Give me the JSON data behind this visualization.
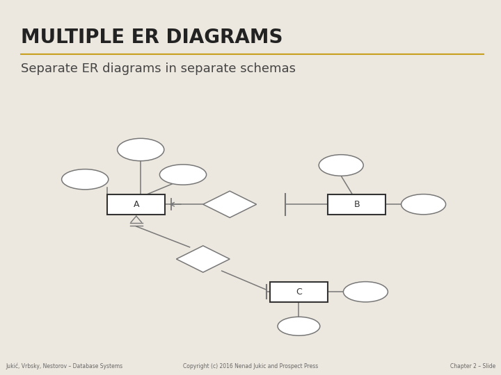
{
  "title": "MULTIPLE ER DIAGRAMS",
  "subtitle": "Separate ER diagrams in separate schemas",
  "footer_left": "Jukić, Vrbsky, Nestorov – Database Systems",
  "footer_center": "Copyright (c) 2016 Nenad Jukic and Prospect Press",
  "footer_right": "Chapter 2 – Slide",
  "bg_color": "#cce8f4",
  "slide_bg": "#ede8df",
  "title_color": "#222222",
  "subtitle_color": "#444444",
  "title_underline_color": "#c8a020",
  "entity_fill": "#ffffff",
  "entity_border": "#333333",
  "ellipse_fill": "#ffffff",
  "ellipse_border": "#777777",
  "diamond_fill": "#ffffff",
  "diamond_border": "#777777",
  "line_color": "#777777",
  "diagram_border": "#999999",
  "footer_color": "#666666"
}
